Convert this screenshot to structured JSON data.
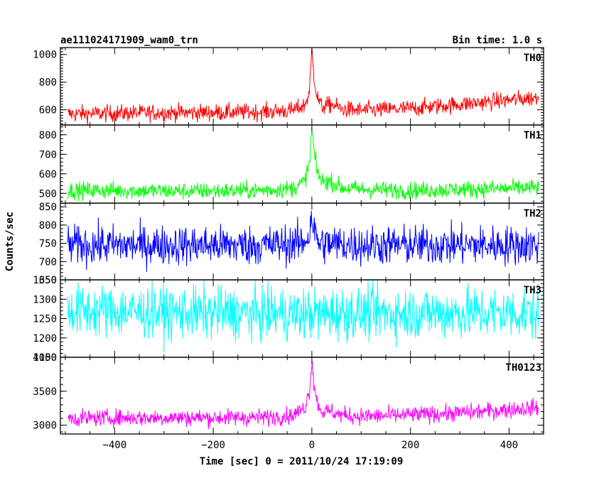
{
  "chart_data": {
    "type": "line",
    "title_left": "ae111024171909_wam0_trn",
    "title_right": "Bin time: 1.0 s",
    "xlabel": "Time [sec] 0 = 2011/10/24 17:19:09",
    "ylabel": "Counts/sec",
    "xlim": [
      -510,
      470
    ],
    "x_range": [
      -495,
      460
    ],
    "xticks": [
      -400,
      -200,
      0,
      200,
      400
    ],
    "xtick_labels": [
      "−400",
      "−200",
      "0",
      "200",
      "400"
    ],
    "panels": [
      {
        "name": "TH0",
        "color": "#ff0000",
        "ylim": [
          490,
          1050
        ],
        "yticks": [
          600,
          800,
          1000
        ],
        "ytick_labels": [
          "600",
          "800",
          "1000"
        ],
        "points": [
          [
            -495,
            570
          ],
          [
            -400,
            575
          ],
          [
            -300,
            580
          ],
          [
            -200,
            580
          ],
          [
            -100,
            585
          ],
          [
            -40,
            595
          ],
          [
            -15,
            630
          ],
          [
            -5,
            720
          ],
          [
            0,
            1040
          ],
          [
            4,
            860
          ],
          [
            10,
            700
          ],
          [
            20,
            620
          ],
          [
            40,
            640
          ],
          [
            60,
            605
          ],
          [
            100,
            595
          ],
          [
            200,
            610
          ],
          [
            300,
            640
          ],
          [
            400,
            670
          ],
          [
            460,
            690
          ]
        ]
      },
      {
        "name": "TH1",
        "color": "#00ff00",
        "ylim": [
          450,
          850
        ],
        "yticks": [
          500,
          600,
          700,
          800
        ],
        "ytick_labels": [
          "500",
          "600",
          "700",
          "800"
        ],
        "points": [
          [
            -495,
            515
          ],
          [
            -400,
            515
          ],
          [
            -300,
            512
          ],
          [
            -200,
            512
          ],
          [
            -100,
            515
          ],
          [
            -40,
            525
          ],
          [
            -15,
            560
          ],
          [
            -5,
            650
          ],
          [
            0,
            830
          ],
          [
            4,
            720
          ],
          [
            10,
            620
          ],
          [
            20,
            560
          ],
          [
            40,
            560
          ],
          [
            60,
            530
          ],
          [
            100,
            520
          ],
          [
            200,
            515
          ],
          [
            300,
            520
          ],
          [
            400,
            525
          ],
          [
            460,
            530
          ]
        ]
      },
      {
        "name": "TH2",
        "color": "#0000ff",
        "ylim": [
          650,
          860
        ],
        "yticks": [
          650,
          700,
          750,
          800,
          850
        ],
        "ytick_labels": [
          "650",
          "700",
          "750",
          "800",
          "850"
        ],
        "points": [
          [
            -495,
            745
          ],
          [
            -400,
            745
          ],
          [
            -300,
            745
          ],
          [
            -200,
            745
          ],
          [
            -100,
            745
          ],
          [
            -20,
            750
          ],
          [
            -5,
            775
          ],
          [
            0,
            830
          ],
          [
            5,
            780
          ],
          [
            15,
            750
          ],
          [
            100,
            745
          ],
          [
            200,
            745
          ],
          [
            300,
            745
          ],
          [
            400,
            745
          ],
          [
            460,
            745
          ]
        ]
      },
      {
        "name": "TH3",
        "color": "#00ffff",
        "ylim": [
          1150,
          1350
        ],
        "yticks": [
          1150,
          1200,
          1250,
          1300,
          1350
        ],
        "ytick_labels": [
          "1150",
          "1200",
          "1250",
          "1300",
          "1350"
        ],
        "points": [
          [
            -495,
            1270
          ],
          [
            -400,
            1270
          ],
          [
            -300,
            1265
          ],
          [
            -200,
            1265
          ],
          [
            -100,
            1262
          ],
          [
            0,
            1262
          ],
          [
            100,
            1265
          ],
          [
            200,
            1265
          ],
          [
            300,
            1265
          ],
          [
            400,
            1265
          ],
          [
            460,
            1265
          ]
        ]
      },
      {
        "name": "TH0123",
        "color": "#ff00ff",
        "ylim": [
          2870,
          4000
        ],
        "yticks": [
          3000,
          3500,
          4000
        ],
        "ytick_labels": [
          "3000",
          "3500",
          "4000"
        ],
        "points": [
          [
            -495,
            3100
          ],
          [
            -400,
            3110
          ],
          [
            -300,
            3110
          ],
          [
            -200,
            3110
          ],
          [
            -100,
            3115
          ],
          [
            -40,
            3140
          ],
          [
            -15,
            3250
          ],
          [
            -5,
            3500
          ],
          [
            0,
            3950
          ],
          [
            4,
            3650
          ],
          [
            10,
            3350
          ],
          [
            20,
            3200
          ],
          [
            40,
            3200
          ],
          [
            60,
            3150
          ],
          [
            100,
            3130
          ],
          [
            200,
            3150
          ],
          [
            300,
            3180
          ],
          [
            400,
            3230
          ],
          [
            460,
            3260
          ]
        ]
      }
    ]
  }
}
